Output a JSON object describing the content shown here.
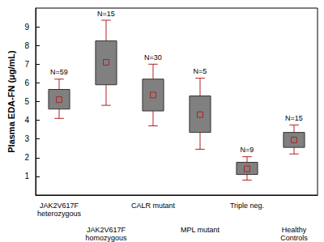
{
  "chart_data": {
    "type": "boxplot",
    "y_label": "Plasma EDA-FN (μg/mL)",
    "categories": [
      "JAK2V617F\nheterozygous",
      "JAK2V617F\nhomozygous",
      "CALR mutant",
      "MPL mutant",
      "Triple neg.",
      "Healthy\nControls"
    ],
    "whisker_low": [
      4.1,
      4.8,
      3.7,
      2.45,
      0.8,
      2.2
    ],
    "q1": [
      4.6,
      5.9,
      4.5,
      3.35,
      1.1,
      2.55
    ],
    "median": [
      5.1,
      7.1,
      5.35,
      4.3,
      1.4,
      2.95
    ],
    "q3": [
      5.65,
      8.25,
      6.2,
      5.3,
      1.75,
      3.35
    ],
    "whisker_high": [
      6.2,
      9.35,
      7.0,
      6.25,
      2.05,
      3.75
    ],
    "n_labels": [
      "N=59",
      "N=15",
      "N=30",
      "N=5",
      "N=9",
      "N=15"
    ],
    "color": "#808080",
    "ylim": [
      0,
      10
    ],
    "yticks": [
      1,
      2,
      3,
      4,
      5,
      6,
      7,
      8,
      9
    ],
    "grid": false
  }
}
